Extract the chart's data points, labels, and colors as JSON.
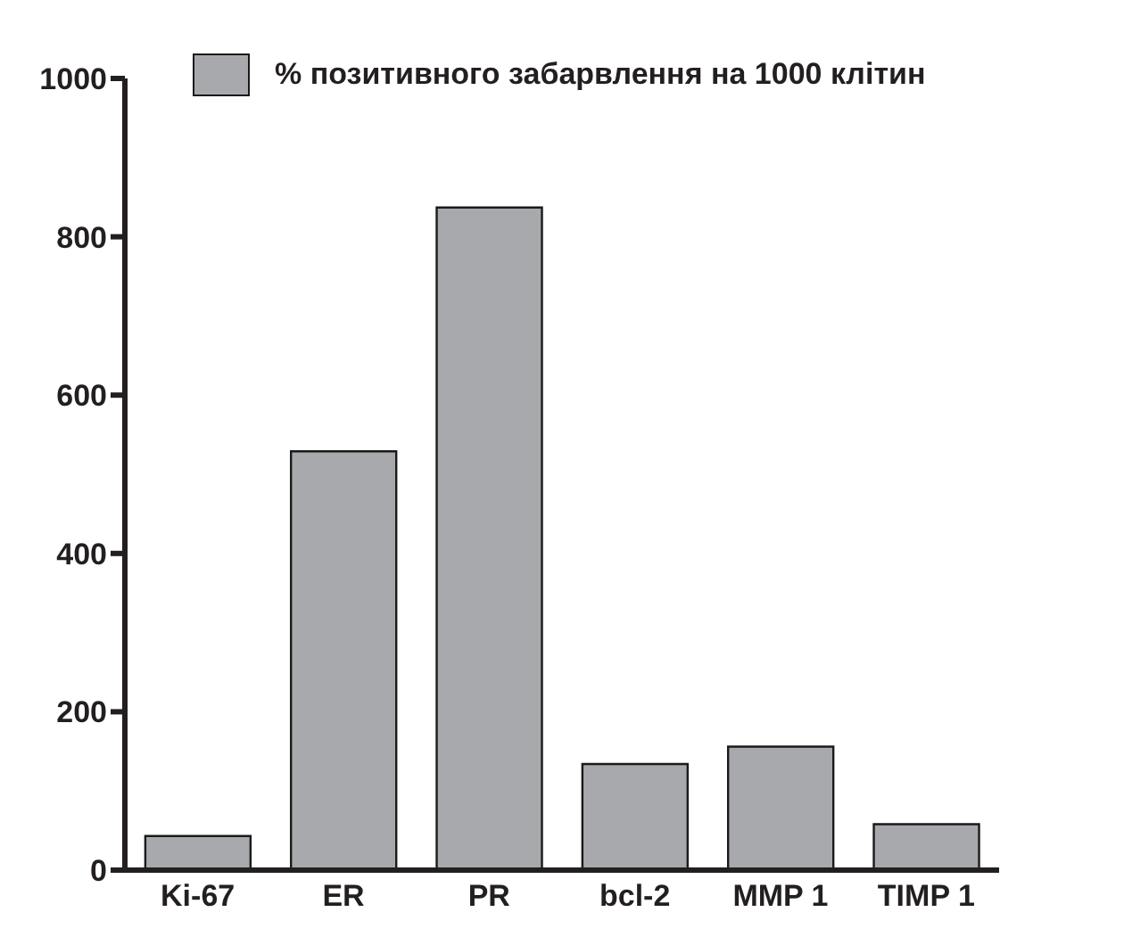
{
  "chart_data": {
    "type": "bar",
    "categories": [
      "Ki-67",
      "ER",
      "PR",
      "bcl-2",
      "MMP 1",
      "TIMP 1"
    ],
    "series": [
      {
        "name": "% позитивного забарвлення на 1000 клітин",
        "color": "#a8a9ad",
        "values": [
          43,
          529,
          837,
          134,
          156,
          58
        ]
      }
    ],
    "ylim": [
      0,
      1000
    ],
    "yticks": [
      0,
      200,
      400,
      600,
      800,
      1000
    ],
    "grid": false,
    "legend": "top left"
  }
}
